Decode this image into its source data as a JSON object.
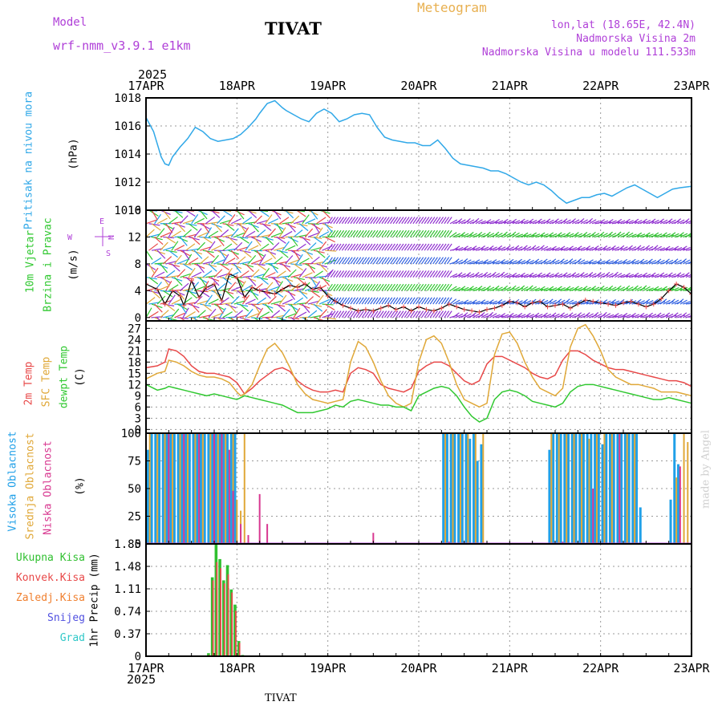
{
  "header": {
    "model_label": "Model",
    "model_name": "wrf-nmm_v3.9.1  e1km",
    "station": "TIVAT",
    "meteogram": "Meteogram",
    "lonlat": "lon,lat (18.65E, 42.4N)",
    "altitude": "Nadmorska Visina 2m",
    "model_altitude": "Nadmorska Visina u modelu 111.533m",
    "year_top": "2025",
    "year_bottom": "2025",
    "footer_station": "TIVAT",
    "credit": "made by Angel"
  },
  "colors": {
    "pressure": "#30a8e8",
    "temp2m": "#e84848",
    "sfc": "#e0a838",
    "dewpt": "#30c830",
    "high_cloud": "#20a0e8",
    "mid_cloud": "#e0a838",
    "low_cloud": "#d83890",
    "total_precip": "#30c030",
    "conv_precip": "#e84848",
    "frz_precip": "#f08030",
    "snow": "#5050e0",
    "hail": "#30c8c8",
    "violet": "#b040d8"
  },
  "x_axis": {
    "labels": [
      "17APR",
      "18APR",
      "19APR",
      "20APR",
      "21APR",
      "22APR",
      "23APR"
    ],
    "range_hours": [
      0,
      144
    ]
  },
  "panel_labels": {
    "pressure": {
      "name": "Pritisak na nivou mora",
      "unit": "(hPa)"
    },
    "wind": {
      "name1": "10m Vjetar",
      "name2": "Brzina i Pravac",
      "unit": "(m/s)",
      "compass": [
        "N",
        "E",
        "S",
        "W"
      ]
    },
    "temp": {
      "name1": "2m Temp",
      "name2": "SFC Temp",
      "name3": "dewpt Temp",
      "unit": "(C)"
    },
    "cloud": {
      "name1": "Visoka Oblacnost",
      "name2": "Srednja Oblacnost",
      "name3": "Niska Oblacnost",
      "unit": "(%)"
    },
    "precip": {
      "axis": "1hr Precip (mm)",
      "legend": [
        "Ukupna Kisa",
        "Konvek.Kisa",
        "Zaledj.Kisa",
        "Snijeg",
        "Grad"
      ]
    }
  },
  "chart_data": [
    {
      "type": "line",
      "id": "pressure",
      "ylim": [
        1010,
        1018
      ],
      "yticks": [
        "1010",
        "1012",
        "1014",
        "1016",
        "1018"
      ],
      "x": [
        0,
        2,
        4,
        5,
        6,
        7,
        9,
        11,
        13,
        15,
        17,
        19,
        21,
        23,
        25,
        27,
        29,
        30,
        32,
        34,
        36,
        37,
        39,
        41,
        43,
        45,
        47,
        49,
        51,
        53,
        55,
        57,
        59,
        61,
        63,
        65,
        67,
        69,
        71,
        73,
        75,
        77,
        79,
        81,
        83,
        85,
        87,
        89,
        91,
        93,
        95,
        97,
        99,
        101,
        103,
        105,
        107,
        109,
        111,
        113,
        115,
        117,
        119,
        121,
        123,
        125,
        127,
        129,
        131,
        133,
        135,
        137,
        139,
        141,
        144
      ],
      "series": [
        {
          "values": [
            1016.6,
            1015.6,
            1013.8,
            1013.3,
            1013.2,
            1013.8,
            1014.5,
            1015.1,
            1015.9,
            1015.6,
            1015.1,
            1014.9,
            1015.0,
            1015.1,
            1015.4,
            1015.9,
            1016.5,
            1016.9,
            1017.6,
            1017.8,
            1017.3,
            1017.1,
            1016.8,
            1016.5,
            1016.3,
            1016.9,
            1017.2,
            1016.9,
            1016.3,
            1016.5,
            1016.8,
            1016.9,
            1016.8,
            1015.9,
            1015.2,
            1015.0,
            1014.9,
            1014.8,
            1014.8,
            1014.6,
            1014.6,
            1015.0,
            1014.4,
            1013.7,
            1013.3,
            1013.2,
            1013.1,
            1013.0,
            1012.8,
            1012.8,
            1012.6,
            1012.3,
            1012.0,
            1011.8,
            1012.0,
            1011.8,
            1011.4,
            1010.9,
            1010.5,
            1010.7,
            1010.9,
            1010.9,
            1011.1,
            1011.2,
            1011.0,
            1011.3,
            1011.6,
            1011.8,
            1011.5,
            1011.2,
            1010.9,
            1011.2,
            1011.5,
            1011.6,
            1011.7
          ]
        }
      ]
    },
    {
      "type": "line",
      "id": "wind",
      "ylim": [
        -0.5,
        16
      ],
      "yticks": [
        "0",
        "4",
        "8",
        "12",
        "16"
      ],
      "speed_x": [
        0,
        3,
        5,
        7,
        9,
        10,
        12,
        14,
        16,
        18,
        20,
        22,
        24,
        26,
        28,
        30,
        32,
        34,
        36,
        38,
        40,
        42,
        44,
        46,
        48,
        50,
        52,
        54,
        56,
        58,
        60,
        62,
        64,
        66,
        68,
        70,
        72,
        74,
        76,
        78,
        80,
        82,
        84,
        86,
        88,
        90,
        92,
        94,
        96,
        98,
        100,
        102,
        104,
        106,
        108,
        110,
        112,
        114,
        116,
        118,
        120,
        122,
        124,
        126,
        128,
        130,
        132,
        134,
        136,
        138,
        140,
        142,
        144
      ],
      "speed": [
        5.0,
        4.2,
        2.0,
        4.0,
        3.2,
        1.8,
        5.5,
        3.0,
        4.5,
        5.0,
        2.5,
        6.5,
        6.0,
        3.0,
        4.5,
        4.0,
        3.8,
        3.5,
        4.2,
        4.8,
        4.5,
        5.0,
        4.2,
        4.5,
        3.2,
        2.4,
        1.8,
        1.4,
        1.0,
        1.2,
        1.0,
        1.4,
        1.8,
        1.2,
        1.6,
        1.0,
        1.6,
        1.2,
        1.0,
        1.4,
        2.0,
        1.6,
        1.2,
        1.0,
        0.8,
        1.2,
        1.4,
        1.8,
        2.4,
        2.2,
        1.6,
        2.2,
        2.4,
        1.6,
        1.8,
        2.0,
        1.4,
        2.0,
        2.6,
        2.4,
        2.2,
        2.0,
        1.8,
        2.2,
        2.4,
        2.0,
        1.6,
        2.0,
        2.8,
        4.0,
        5.0,
        4.5,
        3.5
      ]
    },
    {
      "type": "line",
      "id": "temperature",
      "ylim": [
        -1,
        29
      ],
      "yticks": [
        "0",
        "3",
        "6",
        "9",
        "12",
        "15",
        "18",
        "21",
        "24",
        "27"
      ],
      "x": [
        0,
        3,
        5,
        6,
        8,
        10,
        12,
        14,
        16,
        18,
        20,
        22,
        24,
        25,
        26,
        28,
        30,
        32,
        34,
        36,
        38,
        40,
        42,
        44,
        46,
        48,
        50,
        52,
        54,
        56,
        58,
        60,
        62,
        64,
        66,
        68,
        70,
        72,
        74,
        76,
        78,
        80,
        82,
        84,
        86,
        88,
        90,
        92,
        94,
        96,
        98,
        100,
        102,
        104,
        106,
        108,
        110,
        112,
        114,
        116,
        118,
        120,
        122,
        124,
        126,
        128,
        130,
        132,
        134,
        136,
        138,
        140,
        142,
        144
      ],
      "series": [
        {
          "values": [
            16.5,
            17,
            18,
            21.5,
            21,
            19.5,
            17,
            15.5,
            15,
            15,
            14.5,
            14,
            12.5,
            11,
            9.5,
            11,
            13,
            14.5,
            16,
            16.5,
            15.5,
            13,
            11.5,
            10.5,
            10,
            10,
            10.5,
            10,
            15,
            16.5,
            16,
            15,
            12,
            11,
            10.5,
            10,
            11,
            15.5,
            17,
            18,
            18,
            17,
            15,
            13,
            12,
            13,
            17.5,
            19.5,
            19.5,
            18.5,
            17.5,
            16.5,
            15,
            14,
            13.5,
            14.5,
            18.5,
            21,
            21,
            20,
            18.5,
            17.5,
            16.5,
            16,
            16,
            15.5,
            15,
            14.5,
            14,
            13.5,
            13,
            13,
            12.5,
            11.5
          ]
        },
        {
          "values": [
            13.5,
            15,
            15.5,
            18.5,
            18,
            17,
            15.5,
            14.5,
            14,
            14,
            13.5,
            12.5,
            10,
            9,
            9.5,
            12,
            17,
            21.5,
            23,
            20.5,
            16.5,
            12,
            9.5,
            8,
            7.5,
            7,
            7.5,
            8,
            18,
            23.5,
            22,
            18,
            13,
            9,
            7,
            6,
            7,
            18,
            24,
            25,
            23,
            18,
            12,
            8,
            7,
            6,
            7,
            20,
            25.5,
            26,
            23,
            18,
            14,
            11,
            10,
            9,
            11,
            22,
            27,
            28,
            25,
            21,
            16,
            14,
            13,
            12,
            12,
            11.5,
            11,
            10,
            10,
            10,
            9.5,
            9
          ]
        },
        {
          "values": [
            12,
            10.5,
            11,
            11.5,
            11,
            10.5,
            10,
            9.5,
            9,
            9.5,
            9,
            8.5,
            8,
            8.5,
            9,
            8.5,
            8,
            7.5,
            7,
            6.5,
            5.5,
            4.5,
            4.5,
            4.5,
            5,
            5.5,
            6.5,
            6,
            7.5,
            8,
            7.5,
            7,
            6.5,
            6.5,
            6,
            6,
            5,
            9,
            10,
            11,
            11.5,
            11,
            9,
            6,
            3.5,
            2,
            3,
            8,
            10,
            10.5,
            10,
            9,
            7.5,
            7,
            6.5,
            6,
            7,
            10,
            11.5,
            12,
            12,
            11.5,
            11,
            10.5,
            10,
            9.5,
            9,
            8.5,
            8,
            8,
            8.5,
            8,
            7.5,
            7
          ]
        }
      ]
    },
    {
      "type": "bar",
      "id": "cloud",
      "ylim": [
        0,
        100
      ],
      "yticks": [
        "0",
        "25",
        "50",
        "75",
        "100"
      ],
      "high": [
        [
          0.5,
          85
        ],
        [
          1.5,
          100
        ],
        [
          2.5,
          100
        ],
        [
          3.5,
          100
        ],
        [
          4.5,
          100
        ],
        [
          5.5,
          100
        ],
        [
          6.5,
          100
        ],
        [
          7.5,
          100
        ],
        [
          8.5,
          100
        ],
        [
          9.5,
          100
        ],
        [
          10.5,
          100
        ],
        [
          11.5,
          100
        ],
        [
          12.5,
          100
        ],
        [
          13.5,
          100
        ],
        [
          14.5,
          100
        ],
        [
          15.5,
          100
        ],
        [
          16.5,
          100
        ],
        [
          17.5,
          100
        ],
        [
          18.5,
          100
        ],
        [
          19.5,
          100
        ],
        [
          20.5,
          100
        ],
        [
          21.5,
          100
        ],
        [
          22.5,
          100
        ],
        [
          23.5,
          100
        ],
        [
          78.5,
          100
        ],
        [
          79.5,
          100
        ],
        [
          80.5,
          100
        ],
        [
          81.5,
          100
        ],
        [
          82.5,
          100
        ],
        [
          83.5,
          100
        ],
        [
          84.5,
          100
        ],
        [
          85.5,
          95
        ],
        [
          86.5,
          100
        ],
        [
          87.5,
          75
        ],
        [
          88.5,
          90
        ],
        [
          106.5,
          85
        ],
        [
          107.5,
          100
        ],
        [
          108.5,
          100
        ],
        [
          109.5,
          100
        ],
        [
          110.5,
          100
        ],
        [
          111.5,
          100
        ],
        [
          112.5,
          100
        ],
        [
          113.5,
          100
        ],
        [
          114.5,
          100
        ],
        [
          115.5,
          100
        ],
        [
          116.5,
          100
        ],
        [
          117.5,
          100
        ],
        [
          118.5,
          100
        ],
        [
          119.5,
          100
        ],
        [
          120.5,
          90
        ],
        [
          121.5,
          100
        ],
        [
          122.5,
          100
        ],
        [
          123.5,
          100
        ],
        [
          124.5,
          100
        ],
        [
          125.5,
          100
        ],
        [
          126.5,
          100
        ],
        [
          127.5,
          100
        ],
        [
          128.5,
          100
        ],
        [
          129.5,
          100
        ],
        [
          130.5,
          33
        ],
        [
          138.5,
          40
        ],
        [
          139.5,
          100
        ],
        [
          140.5,
          72
        ]
      ],
      "mid": [
        [
          1,
          100
        ],
        [
          3,
          100
        ],
        [
          5,
          100
        ],
        [
          7,
          100
        ],
        [
          9,
          100
        ],
        [
          11,
          100
        ],
        [
          13,
          100
        ],
        [
          15,
          100
        ],
        [
          17,
          100
        ],
        [
          19,
          100
        ],
        [
          21,
          100
        ],
        [
          23,
          100
        ],
        [
          24,
          40
        ],
        [
          25,
          30
        ],
        [
          26,
          100
        ],
        [
          79,
          100
        ],
        [
          81,
          100
        ],
        [
          83,
          100
        ],
        [
          85,
          100
        ],
        [
          87,
          100
        ],
        [
          89,
          100
        ],
        [
          107,
          100
        ],
        [
          109,
          100
        ],
        [
          111,
          100
        ],
        [
          113,
          100
        ],
        [
          115,
          100
        ],
        [
          117,
          95
        ],
        [
          119,
          100
        ],
        [
          121,
          100
        ],
        [
          123,
          100
        ],
        [
          125,
          100
        ],
        [
          127,
          100
        ],
        [
          129,
          100
        ],
        [
          140,
          60
        ],
        [
          142,
          100
        ],
        [
          143,
          92
        ]
      ],
      "low": [
        [
          6,
          100
        ],
        [
          10,
          100
        ],
        [
          14,
          100
        ],
        [
          18,
          100
        ],
        [
          20,
          100
        ],
        [
          22,
          85
        ],
        [
          23,
          48
        ],
        [
          25,
          18
        ],
        [
          27,
          8
        ],
        [
          30,
          45
        ],
        [
          32,
          18
        ],
        [
          60,
          10
        ],
        [
          80,
          2
        ],
        [
          110,
          2
        ],
        [
          118,
          50
        ],
        [
          125,
          100
        ],
        [
          141,
          70
        ]
      ]
    },
    {
      "type": "bar",
      "id": "precip",
      "ylim": [
        0,
        1.85
      ],
      "yticks": [
        "0",
        "0.37",
        "0.74",
        "1.11",
        "1.48",
        "1.85"
      ],
      "total": [
        [
          16.5,
          0.05
        ],
        [
          17.5,
          1.3
        ],
        [
          18.5,
          1.85
        ],
        [
          19.5,
          1.6
        ],
        [
          20.5,
          1.25
        ],
        [
          21.5,
          1.5
        ],
        [
          22.5,
          1.1
        ],
        [
          23.5,
          0.85
        ],
        [
          24.5,
          0.25
        ],
        [
          25.5,
          0.02
        ]
      ],
      "convective": [
        [
          16.7,
          0.02
        ],
        [
          17.7,
          1.25
        ],
        [
          18.7,
          1.55
        ],
        [
          19.7,
          1.45
        ],
        [
          20.7,
          1.2
        ],
        [
          21.7,
          1.35
        ],
        [
          22.7,
          1.05
        ],
        [
          23.7,
          0.75
        ],
        [
          24.7,
          0.22
        ]
      ]
    }
  ]
}
